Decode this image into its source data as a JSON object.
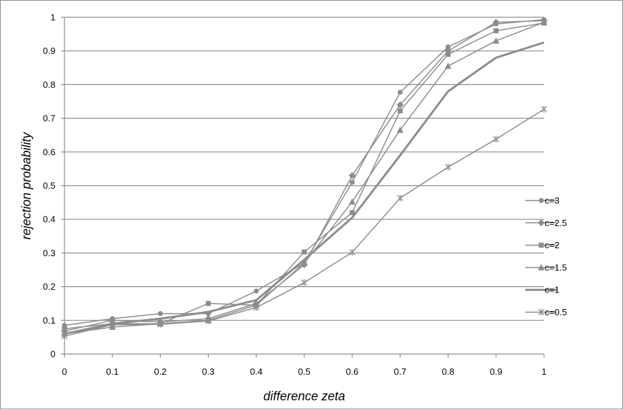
{
  "chart_data": {
    "type": "line",
    "title": "",
    "xlabel": "difference zeta",
    "ylabel": "rejection probability",
    "x": [
      0,
      0.1,
      0.2,
      0.3,
      0.4,
      0.5,
      0.6,
      0.7,
      0.8,
      0.9,
      1
    ],
    "x_tick_labels": [
      "0",
      "0.1",
      "0.2",
      "0.3",
      "0.4",
      "0.5",
      "0.6",
      "0.7",
      "0.8",
      "0.9",
      "1"
    ],
    "y_tick_labels": [
      "0",
      "0.1",
      "0.2",
      "0.3",
      "0.4",
      "0.5",
      "0.6",
      "0.7",
      "0.8",
      "0.9",
      "1"
    ],
    "xlim": [
      0,
      1
    ],
    "ylim": [
      0,
      1
    ],
    "grid": "horizontal",
    "legend_position": "right",
    "colors": {
      "series": "#8c8c8c",
      "grid": "#8c8c8c",
      "axis": "#8c8c8c"
    },
    "series": [
      {
        "name": "c=3",
        "marker": "circle",
        "values": [
          0.085,
          0.105,
          0.12,
          0.12,
          0.187,
          0.27,
          0.51,
          0.777,
          0.912,
          0.98,
          0.993
        ]
      },
      {
        "name": "c=2.5",
        "marker": "diamond",
        "values": [
          0.068,
          0.1,
          0.095,
          0.105,
          0.15,
          0.265,
          0.53,
          0.74,
          0.9,
          0.985,
          0.99
        ]
      },
      {
        "name": "c=2",
        "marker": "square",
        "values": [
          0.075,
          0.09,
          0.09,
          0.15,
          0.145,
          0.303,
          0.42,
          0.722,
          0.89,
          0.96,
          0.983
        ]
      },
      {
        "name": "c=1.5",
        "marker": "triangle",
        "values": [
          0.06,
          0.08,
          0.09,
          0.1,
          0.145,
          0.27,
          0.452,
          0.665,
          0.855,
          0.93,
          0.985
        ]
      },
      {
        "name": "c=1",
        "marker": "none",
        "values": [
          0.06,
          0.09,
          0.105,
          0.125,
          0.16,
          0.28,
          0.405,
          0.59,
          0.78,
          0.88,
          0.925
        ]
      },
      {
        "name": "c=0.5",
        "marker": "x",
        "values": [
          0.053,
          0.087,
          0.088,
          0.098,
          0.138,
          0.212,
          0.302,
          0.463,
          0.555,
          0.638,
          0.727
        ]
      }
    ]
  }
}
